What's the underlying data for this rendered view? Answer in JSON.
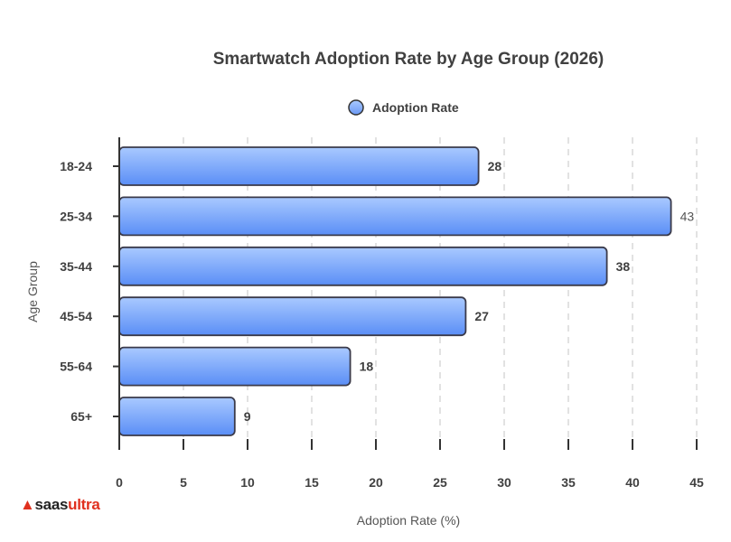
{
  "chart_data": {
    "type": "bar",
    "orientation": "horizontal",
    "title": "Smartwatch Adoption Rate by Age Group (2026)",
    "xlabel": "Adoption Rate (%)",
    "ylabel": "Age Group",
    "categories": [
      "18-24",
      "25-34",
      "35-44",
      "45-54",
      "55-64",
      "65+"
    ],
    "series": [
      {
        "name": "Adoption Rate",
        "values": [
          28,
          43,
          38,
          27,
          18,
          9
        ]
      }
    ],
    "data_labels": [
      "28",
      "43",
      "38",
      "27",
      "18",
      "9"
    ],
    "xlim": [
      0,
      45
    ],
    "xticks": [
      "0",
      "5",
      "10",
      "15",
      "20",
      "25",
      "30",
      "35",
      "40",
      "45"
    ],
    "grid": "vertical dashed",
    "legend_position": "top-center",
    "colors": {
      "bar_top": "#a7c8ff",
      "bar_bottom": "#5b8ff7",
      "bar_stroke": "#3a3a4a",
      "axis": "#333333",
      "grid": "#d9d9d9"
    }
  },
  "branding": {
    "logo_mark": "▲",
    "logo_text_a": "saas",
    "logo_text_b": "ultra"
  }
}
